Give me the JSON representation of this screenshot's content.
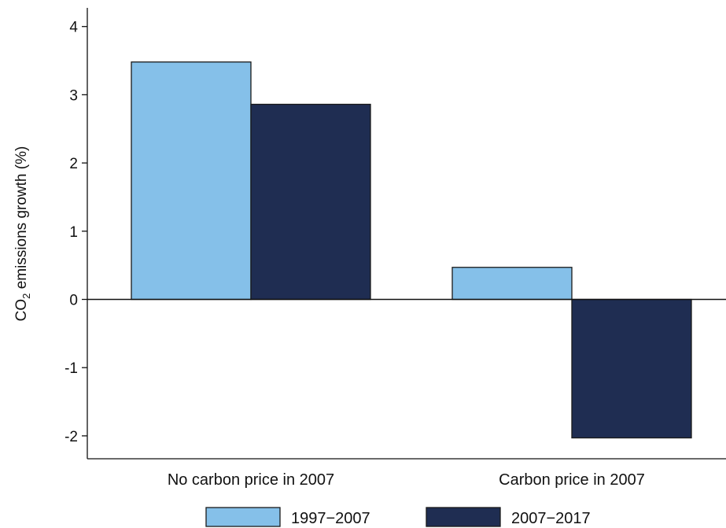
{
  "chart_data": {
    "type": "bar",
    "categories": [
      "No carbon price in 2007",
      "Carbon price in 2007"
    ],
    "series": [
      {
        "name": "1997−2007",
        "values": [
          3.48,
          0.47
        ],
        "color": "#85c0e9"
      },
      {
        "name": "2007−2017",
        "values": [
          2.86,
          -2.03
        ],
        "color": "#1f2d52"
      }
    ],
    "title": "",
    "xlabel": "",
    "ylabel": {
      "prefix": "CO",
      "subscript": "2",
      "suffix": " emissions growth (%)"
    },
    "ylim": [
      -2.3,
      4.3
    ],
    "yticks": [
      4,
      3,
      2,
      1,
      0,
      -1,
      -2
    ],
    "ytick_labels": [
      "4",
      "3",
      "2",
      "1",
      "0",
      "-1",
      "-2"
    ],
    "grid": false,
    "legend": {
      "position": "bottom"
    }
  }
}
